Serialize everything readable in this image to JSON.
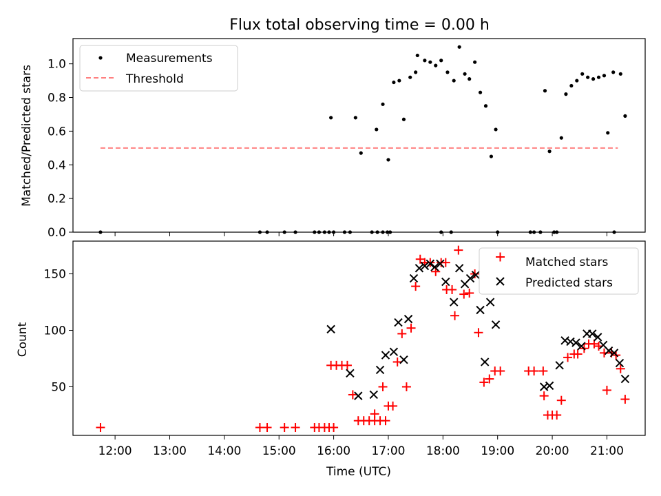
{
  "colors": {
    "black": "#000000",
    "red": "#ff0000",
    "threshold": "#ff8080"
  },
  "chart_data": [
    {
      "type": "scatter",
      "title": "Flux total observing time = 0.00 h",
      "xlabel": "",
      "ylabel": "Matched/Predicted stars",
      "xlim_hours": [
        11.23,
        21.7
      ],
      "ylim": [
        0,
        1.15
      ],
      "yticks": [
        0.0,
        0.2,
        0.4,
        0.6,
        0.8,
        1.0
      ],
      "ytick_labels": [
        "0.0",
        "0.2",
        "0.4",
        "0.6",
        "0.8",
        "1.0"
      ],
      "legend": {
        "position": "top-left",
        "entries": [
          "Measurements",
          "Threshold"
        ]
      },
      "threshold": {
        "name": "Threshold",
        "y": 0.5,
        "x_range": [
          "11:44",
          "21:12"
        ]
      },
      "series": [
        {
          "name": "Measurements",
          "marker": "dot",
          "color": "#000000",
          "points": [
            [
              "11:44",
              0.0
            ],
            [
              "14:39",
              0.0
            ],
            [
              "14:47",
              0.0
            ],
            [
              "15:06",
              0.0
            ],
            [
              "15:18",
              0.0
            ],
            [
              "15:39",
              0.0
            ],
            [
              "15:44",
              0.0
            ],
            [
              "15:50",
              0.0
            ],
            [
              "15:55",
              0.0
            ],
            [
              "16:00",
              0.0
            ],
            [
              "15:57",
              0.68
            ],
            [
              "16:12",
              0.0
            ],
            [
              "16:18",
              0.0
            ],
            [
              "16:24",
              0.68
            ],
            [
              "16:30",
              0.47
            ],
            [
              "16:42",
              0.0
            ],
            [
              "16:48",
              0.0
            ],
            [
              "16:54",
              0.0
            ],
            [
              "16:59",
              0.0
            ],
            [
              "16:47",
              0.61
            ],
            [
              "16:54",
              0.76
            ],
            [
              "17:00",
              0.43
            ],
            [
              "17:02",
              0.0
            ],
            [
              "17:06",
              0.89
            ],
            [
              "17:12",
              0.9
            ],
            [
              "17:17",
              0.67
            ],
            [
              "17:24",
              0.92
            ],
            [
              "17:30",
              0.95
            ],
            [
              "17:32",
              1.05
            ],
            [
              "17:40",
              1.02
            ],
            [
              "17:46",
              1.01
            ],
            [
              "17:52",
              0.99
            ],
            [
              "17:58",
              1.02
            ],
            [
              "17:58",
              0.0
            ],
            [
              "18:05",
              0.95
            ],
            [
              "18:09",
              0.0
            ],
            [
              "18:12",
              0.9
            ],
            [
              "18:18",
              1.1
            ],
            [
              "18:24",
              0.94
            ],
            [
              "18:29",
              0.91
            ],
            [
              "18:35",
              1.01
            ],
            [
              "18:41",
              0.83
            ],
            [
              "18:47",
              0.75
            ],
            [
              "18:53",
              0.45
            ],
            [
              "18:58",
              0.61
            ],
            [
              "19:00",
              0.0
            ],
            [
              "19:36",
              0.0
            ],
            [
              "19:40",
              0.0
            ],
            [
              "19:47",
              0.0
            ],
            [
              "19:52",
              0.84
            ],
            [
              "19:57",
              0.48
            ],
            [
              "20:02",
              0.0
            ],
            [
              "20:05",
              0.0
            ],
            [
              "20:10",
              0.56
            ],
            [
              "20:15",
              0.82
            ],
            [
              "20:21",
              0.87
            ],
            [
              "20:27",
              0.9
            ],
            [
              "20:33",
              0.94
            ],
            [
              "20:39",
              0.92
            ],
            [
              "20:45",
              0.91
            ],
            [
              "20:51",
              0.92
            ],
            [
              "20:57",
              0.93
            ],
            [
              "21:01",
              0.59
            ],
            [
              "21:07",
              0.95
            ],
            [
              "21:08",
              0.0
            ],
            [
              "21:15",
              0.94
            ],
            [
              "21:20",
              0.69
            ]
          ]
        }
      ]
    },
    {
      "type": "scatter",
      "title": "",
      "xlabel": "Time (UTC)",
      "ylabel": "Count",
      "xlim_hours": [
        11.23,
        21.7
      ],
      "ylim": [
        7,
        179
      ],
      "yticks": [
        50,
        100,
        150
      ],
      "ytick_labels": [
        "50",
        "100",
        "150"
      ],
      "xticks": [
        "12:00",
        "13:00",
        "14:00",
        "15:00",
        "16:00",
        "17:00",
        "18:00",
        "19:00",
        "20:00",
        "21:00"
      ],
      "legend": {
        "position": "top-right",
        "entries": [
          "Matched stars",
          "Predicted stars"
        ]
      },
      "series": [
        {
          "name": "Matched stars",
          "marker": "plus",
          "color": "#ff0000",
          "points": [
            [
              "11:44",
              14
            ],
            [
              "14:39",
              14
            ],
            [
              "14:47",
              14
            ],
            [
              "15:06",
              14
            ],
            [
              "15:18",
              14
            ],
            [
              "15:39",
              14
            ],
            [
              "15:44",
              14
            ],
            [
              "15:50",
              14
            ],
            [
              "15:55",
              14
            ],
            [
              "16:00",
              14
            ],
            [
              "15:57",
              69
            ],
            [
              "16:03",
              69
            ],
            [
              "16:09",
              69
            ],
            [
              "16:15",
              69
            ],
            [
              "16:21",
              43
            ],
            [
              "16:27",
              20
            ],
            [
              "16:33",
              20
            ],
            [
              "16:39",
              20
            ],
            [
              "16:45",
              20
            ],
            [
              "16:51",
              20
            ],
            [
              "16:57",
              20
            ],
            [
              "16:45",
              26
            ],
            [
              "16:54",
              50
            ],
            [
              "17:00",
              33
            ],
            [
              "17:05",
              33
            ],
            [
              "17:10",
              72
            ],
            [
              "17:15",
              97
            ],
            [
              "17:20",
              50
            ],
            [
              "17:25",
              102
            ],
            [
              "17:30",
              139
            ],
            [
              "17:35",
              163
            ],
            [
              "17:40",
              160
            ],
            [
              "17:46",
              160
            ],
            [
              "17:52",
              152
            ],
            [
              "17:58",
              160
            ],
            [
              "18:03",
              160
            ],
            [
              "18:04",
              136
            ],
            [
              "18:10",
              136
            ],
            [
              "18:13",
              113
            ],
            [
              "18:17",
              171
            ],
            [
              "18:23",
              132
            ],
            [
              "18:29",
              133
            ],
            [
              "18:35",
              150
            ],
            [
              "18:39",
              98
            ],
            [
              "18:45",
              54
            ],
            [
              "18:51",
              57
            ],
            [
              "18:57",
              64
            ],
            [
              "19:03",
              64
            ],
            [
              "19:34",
              64
            ],
            [
              "19:40",
              64
            ],
            [
              "19:50",
              64
            ],
            [
              "19:51",
              42
            ],
            [
              "19:55",
              25
            ],
            [
              "20:00",
              25
            ],
            [
              "20:05",
              25
            ],
            [
              "20:10",
              38
            ],
            [
              "20:17",
              76
            ],
            [
              "20:24",
              79
            ],
            [
              "20:28",
              79
            ],
            [
              "20:35",
              84
            ],
            [
              "20:40",
              88
            ],
            [
              "20:46",
              88
            ],
            [
              "20:51",
              86
            ],
            [
              "20:57",
              80
            ],
            [
              "21:00",
              47
            ],
            [
              "21:05",
              80
            ],
            [
              "21:10",
              78
            ],
            [
              "21:15",
              66
            ],
            [
              "21:20",
              39
            ]
          ]
        },
        {
          "name": "Predicted stars",
          "marker": "x",
          "color": "#000000",
          "points": [
            [
              "15:57",
              101
            ],
            [
              "16:18",
              62
            ],
            [
              "16:27",
              42
            ],
            [
              "16:44",
              43
            ],
            [
              "16:51",
              65
            ],
            [
              "16:57",
              78
            ],
            [
              "17:06",
              81
            ],
            [
              "17:11",
              107
            ],
            [
              "17:17",
              74
            ],
            [
              "17:22",
              110
            ],
            [
              "17:28",
              146
            ],
            [
              "17:34",
              155
            ],
            [
              "17:40",
              157
            ],
            [
              "17:46",
              159
            ],
            [
              "17:51",
              156
            ],
            [
              "17:57",
              159
            ],
            [
              "18:03",
              143
            ],
            [
              "18:12",
              125
            ],
            [
              "18:18",
              155
            ],
            [
              "18:24",
              141
            ],
            [
              "18:30",
              146
            ],
            [
              "18:36",
              149
            ],
            [
              "18:41",
              118
            ],
            [
              "18:46",
              72
            ],
            [
              "18:52",
              125
            ],
            [
              "18:58",
              105
            ],
            [
              "19:51",
              50
            ],
            [
              "19:57",
              51
            ],
            [
              "20:08",
              69
            ],
            [
              "20:14",
              91
            ],
            [
              "20:20",
              90
            ],
            [
              "20:26",
              89
            ],
            [
              "20:32",
              86
            ],
            [
              "20:38",
              97
            ],
            [
              "20:44",
              97
            ],
            [
              "20:50",
              94
            ],
            [
              "20:56",
              87
            ],
            [
              "21:02",
              82
            ],
            [
              "21:08",
              80
            ],
            [
              "21:14",
              71
            ],
            [
              "21:20",
              57
            ]
          ]
        }
      ]
    }
  ]
}
